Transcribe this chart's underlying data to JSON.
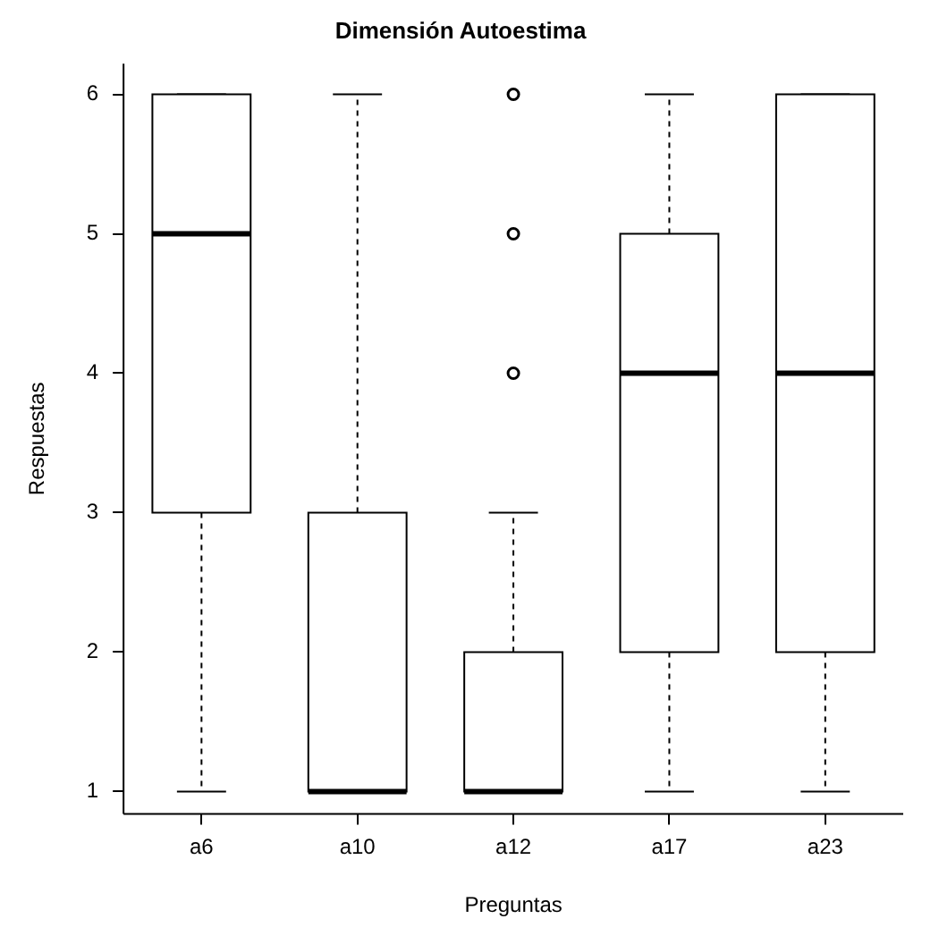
{
  "chart_data": {
    "type": "box",
    "title": "Dimensión Autoestima",
    "xlabel": "Preguntas",
    "ylabel": "Respuestas",
    "categories": [
      "a6",
      "a10",
      "a12",
      "a17",
      "a23"
    ],
    "boxes": [
      {
        "low": 1,
        "q1": 3,
        "median": 5,
        "q3": 6,
        "high": 6
      },
      {
        "low": 1,
        "q1": 1,
        "median": 1,
        "q3": 3,
        "high": 6
      },
      {
        "low": 1,
        "q1": 1,
        "median": 1,
        "q3": 2,
        "high": 3,
        "outliers": [
          4,
          5,
          6
        ]
      },
      {
        "low": 1,
        "q1": 2,
        "median": 4,
        "q3": 5,
        "high": 6
      },
      {
        "low": 1,
        "q1": 2,
        "median": 4,
        "q3": 6,
        "high": 6
      }
    ],
    "ylim": [
      0.84,
      6.22
    ],
    "yticks": [
      1,
      2,
      3,
      4,
      5,
      6
    ],
    "grid": false,
    "legend": false
  }
}
